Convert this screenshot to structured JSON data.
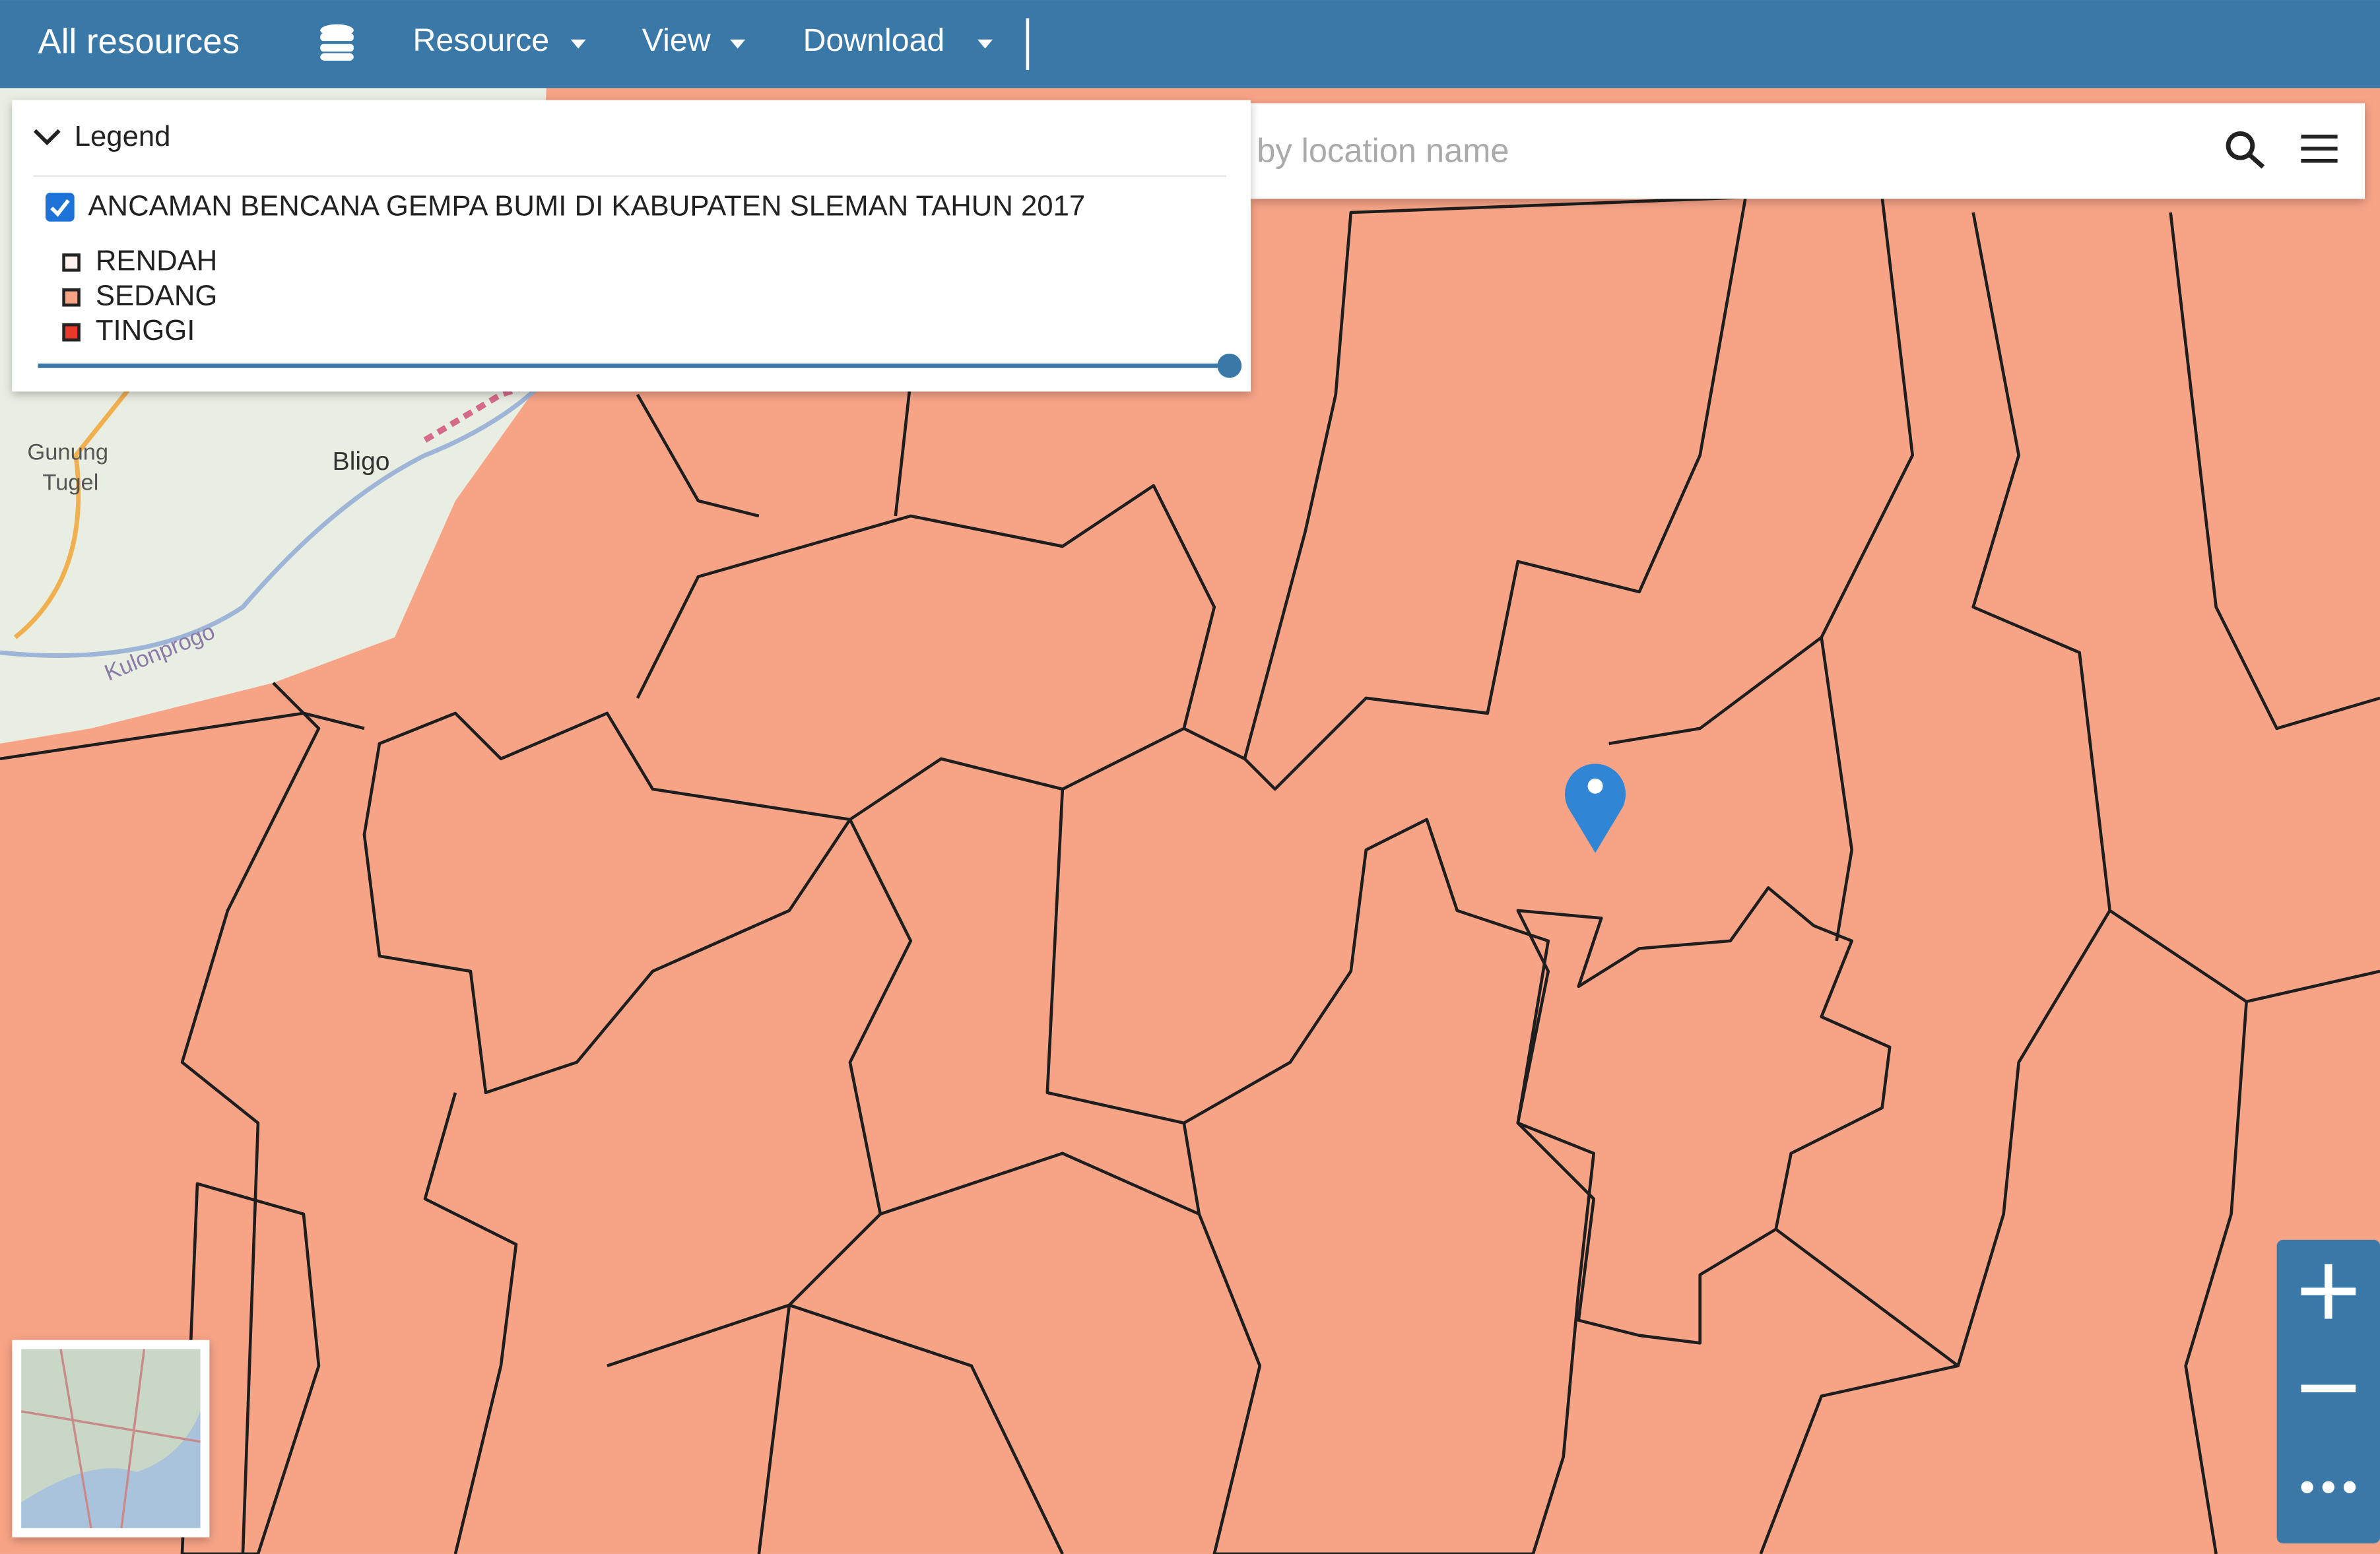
{
  "header": {
    "nav": [
      "All resources",
      "Resource",
      "View",
      "Download"
    ]
  },
  "legend": {
    "title": "Legend",
    "layer": "ANCAMAN BENCANA GEMPA BUMI DI KABUPATEN SLEMAN TAHUN 2017",
    "classes": [
      {
        "label": "RENDAH",
        "color": "#fdf2ee"
      },
      {
        "label": "SEDANG",
        "color": "#f7a386"
      },
      {
        "label": "TINGGI",
        "color": "#e8372b"
      }
    ]
  },
  "search": {
    "placeholder": "by location name"
  },
  "map": {
    "labels": [
      "Gunung",
      "Tugel",
      "Bligo",
      "Kulonprogo"
    ]
  }
}
